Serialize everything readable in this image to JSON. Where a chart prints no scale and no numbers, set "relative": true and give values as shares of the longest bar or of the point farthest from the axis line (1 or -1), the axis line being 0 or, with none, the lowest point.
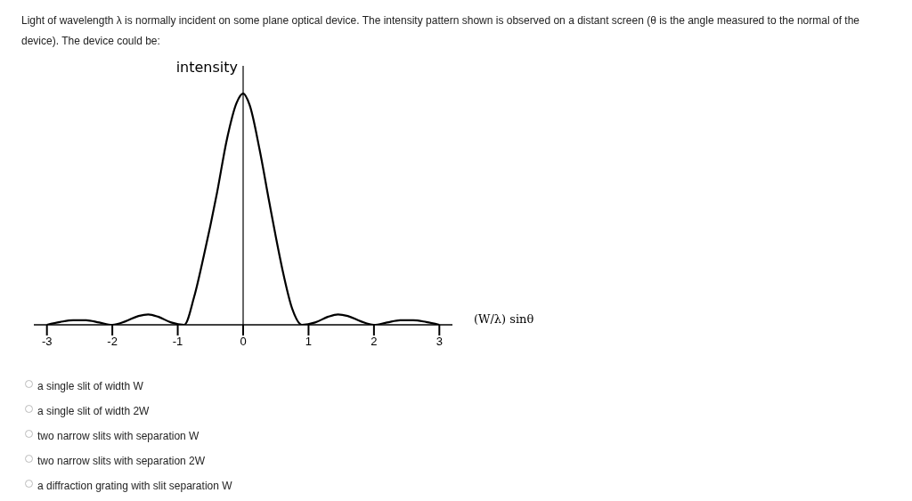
{
  "chart_data": {
    "type": "line",
    "title": "Light of wavelength λ is normally incident on some plane optical device. The intensity pattern shown is observed on a distant screen (θ is the angle measured to the normal of the device). The device could be:",
    "xlabel": "(W/λ) sinθ",
    "ylabel": "intensity",
    "relative": true,
    "tick_labels": "x",
    "xlim": [
      -3.2,
      3.2
    ],
    "xticks": [
      -3,
      -2,
      -1,
      0,
      1,
      2,
      3
    ],
    "x": [
      -3.0,
      -2.8,
      -2.6,
      -2.4,
      -2.2,
      -2.0,
      -1.8,
      -1.6,
      -1.45,
      -1.3,
      -1.1,
      -0.9,
      -0.75,
      -0.6,
      -0.5,
      -0.4,
      -0.25,
      -0.1,
      0,
      0.1,
      0.25,
      0.4,
      0.5,
      0.6,
      0.75,
      0.9,
      1.1,
      1.3,
      1.45,
      1.6,
      1.8,
      2.0,
      2.2,
      2.4,
      2.6,
      2.8,
      3.0
    ],
    "series": [
      {
        "color": "#000000",
        "values": [
          0,
          0.012,
          0.02,
          0.02,
          0.01,
          0,
          0.015,
          0.038,
          0.045,
          0.035,
          0.01,
          0,
          0.12,
          0.3,
          0.43,
          0.57,
          0.8,
          0.96,
          1,
          0.95,
          0.76,
          0.53,
          0.38,
          0.24,
          0.07,
          0,
          0.01,
          0.035,
          0.045,
          0.038,
          0.015,
          0,
          0.01,
          0.02,
          0.02,
          0.012,
          0
        ]
      }
    ],
    "annotations": [
      "a single slit of width W",
      "a single slit of width 2W",
      "two narrow slits with separation W",
      "two narrow slits with separation 2W",
      "a diffraction grating with slit separation W"
    ]
  }
}
